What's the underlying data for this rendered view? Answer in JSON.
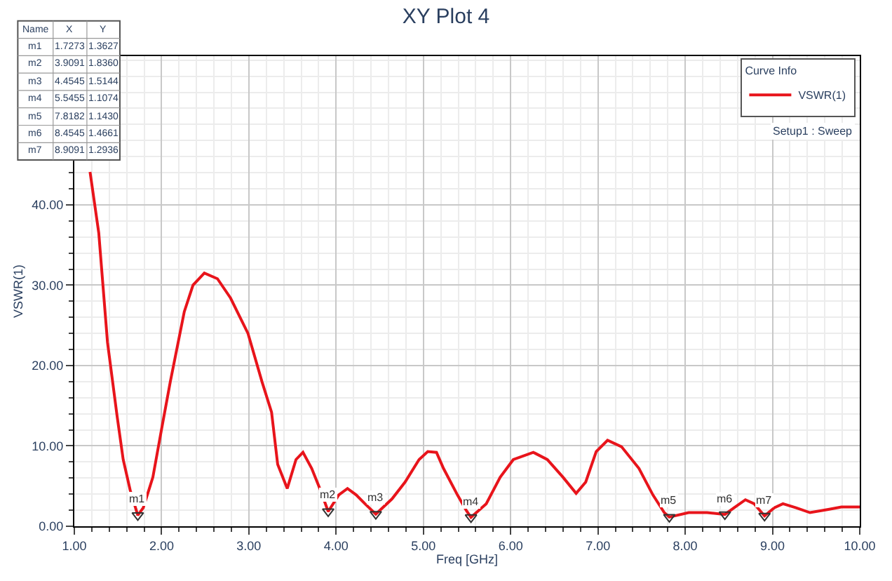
{
  "chart_data": {
    "type": "line",
    "title": "XY Plot 4",
    "xlabel": "Freq [GHz]",
    "ylabel": "VSWR(1)",
    "legend_title": "Curve Info",
    "xlim": [
      1,
      10
    ],
    "xticks": [
      {
        "value": 1,
        "label": "1.00"
      },
      {
        "value": 2,
        "label": "2.00"
      },
      {
        "value": 3,
        "label": "3.00"
      },
      {
        "value": 4,
        "label": "4.00"
      },
      {
        "value": 5,
        "label": "5.00"
      },
      {
        "value": 6,
        "label": "6.00"
      },
      {
        "value": 7,
        "label": "7.00"
      },
      {
        "value": 8,
        "label": "8.00"
      },
      {
        "value": 9,
        "label": "9.00"
      },
      {
        "value": 10,
        "label": "10.00"
      }
    ],
    "ylim": [
      0,
      58.5
    ],
    "yticks": [
      {
        "value": 0,
        "label": "0.00"
      },
      {
        "value": 10,
        "label": "10.00"
      },
      {
        "value": 20,
        "label": "20.00"
      },
      {
        "value": 30,
        "label": "30.00"
      },
      {
        "value": 40,
        "label": "40.00"
      }
    ],
    "grid": true,
    "legend": "top right",
    "line_style": "solid",
    "series": [
      {
        "name": "VSWR(1)",
        "color": "#e8141b",
        "x": [
          1.18,
          1.28,
          1.38,
          1.49,
          1.56,
          1.64,
          1.7273,
          1.79,
          1.9,
          2.0,
          2.1,
          2.26,
          2.36,
          2.49,
          2.64,
          2.79,
          2.99,
          3.15,
          3.26,
          3.33,
          3.44,
          3.54,
          3.62,
          3.72,
          3.82,
          3.9091,
          4.03,
          4.13,
          4.23,
          4.33,
          4.4545,
          4.64,
          4.79,
          4.95,
          5.05,
          5.15,
          5.23,
          5.39,
          5.49,
          5.5455,
          5.72,
          5.88,
          6.03,
          6.26,
          6.42,
          6.6,
          6.75,
          6.86,
          6.98,
          7.11,
          7.27,
          7.47,
          7.63,
          7.76,
          7.8182,
          8.04,
          8.25,
          8.4545,
          8.56,
          8.69,
          8.79,
          8.9091,
          9.02,
          9.12,
          9.27,
          9.43,
          9.64,
          9.79,
          10.0
        ],
        "values": [
          44.1,
          36.5,
          22.9,
          13.7,
          8.3,
          4.5,
          1.3627,
          2.3,
          6.1,
          12.1,
          18.0,
          26.7,
          30.0,
          31.5,
          30.8,
          28.4,
          24.0,
          18.0,
          14.2,
          7.7,
          4.7,
          8.3,
          9.2,
          7.2,
          4.5,
          1.836,
          3.9,
          4.7,
          3.9,
          2.8,
          1.5144,
          3.4,
          5.5,
          8.3,
          9.3,
          9.2,
          7.2,
          3.9,
          2.0,
          1.1074,
          2.8,
          6.1,
          8.3,
          9.2,
          8.3,
          6.1,
          4.1,
          5.5,
          9.3,
          10.7,
          9.9,
          7.2,
          3.9,
          1.7,
          1.143,
          1.7,
          1.7,
          1.4661,
          2.3,
          3.3,
          2.8,
          1.2936,
          2.3,
          2.8,
          2.3,
          1.7,
          2.1,
          2.4,
          2.4
        ]
      },
      {
        "type": "scatter",
        "marker": "triangle",
        "color": "#333333",
        "x": [
          1.7273,
          3.9091,
          4.4545,
          5.5455,
          7.8182,
          8.4545,
          8.9091
        ],
        "values": [
          1.3627,
          1.836,
          1.5144,
          1.1074,
          1.143,
          1.4661,
          1.2936
        ],
        "value_labels": [
          "m1",
          "m2",
          "m3",
          "m4",
          "m5",
          "m6",
          "m7"
        ]
      }
    ],
    "annotations": [
      "Setup1 : Sweep",
      "Name",
      "X",
      "Y",
      "m1",
      "1.7273",
      "1.3627",
      "m2",
      "3.9091",
      "1.8360",
      "m3",
      "4.4545",
      "1.5144",
      "m4",
      "5.5455",
      "1.1074",
      "m5",
      "7.8182",
      "1.1430",
      "m6",
      "8.4545",
      "1.4661",
      "m7",
      "8.9091",
      "1.2936"
    ]
  }
}
